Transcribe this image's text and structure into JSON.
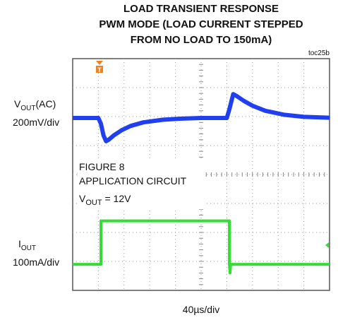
{
  "chart_data": {
    "type": "scope",
    "title": "LOAD TRANSIENT RESPONSE",
    "subtitle": [
      "PWM MODE (LOAD CURRENT STEPPED",
      "FROM NO LOAD TO 150mA)"
    ],
    "figure_id": "toc25b",
    "xlabel": "40µs/div",
    "xlim": [
      0,
      400
    ],
    "annotations": [
      "FIGURE 8",
      "APPLICATION CIRCUIT",
      {
        "main": "V",
        "sub": "OUT",
        "rest": " =  12V"
      }
    ],
    "series": [
      {
        "name": {
          "main": "V",
          "sub": "OUT",
          "rest": "(AC)"
        },
        "scale": "200mV/div",
        "color": "#1f3ff0",
        "ylim": [
          -1190,
          410
        ],
        "x": [
          0,
          40,
          44,
          48,
          52,
          56,
          64,
          76,
          90,
          110,
          140,
          170,
          200,
          240,
          244,
          250,
          256,
          266,
          280,
          300,
          330,
          360,
          400
        ],
        "values": [
          0,
          0,
          -40,
          -120,
          -160,
          -150,
          -120,
          -85,
          -55,
          -30,
          -12,
          -4,
          0,
          0,
          60,
          165,
          150,
          120,
          85,
          50,
          22,
          8,
          2
        ]
      },
      {
        "name": {
          "main": "I",
          "sub": "OUT",
          "rest": ""
        },
        "scale": "100mA/div",
        "color": "#33dd33",
        "ylim": [
          -90,
          710
        ],
        "x": [
          0,
          44,
          44,
          244,
          244,
          245,
          246,
          400
        ],
        "values": [
          0,
          0,
          150,
          150,
          0,
          -30,
          0,
          0
        ]
      }
    ]
  }
}
